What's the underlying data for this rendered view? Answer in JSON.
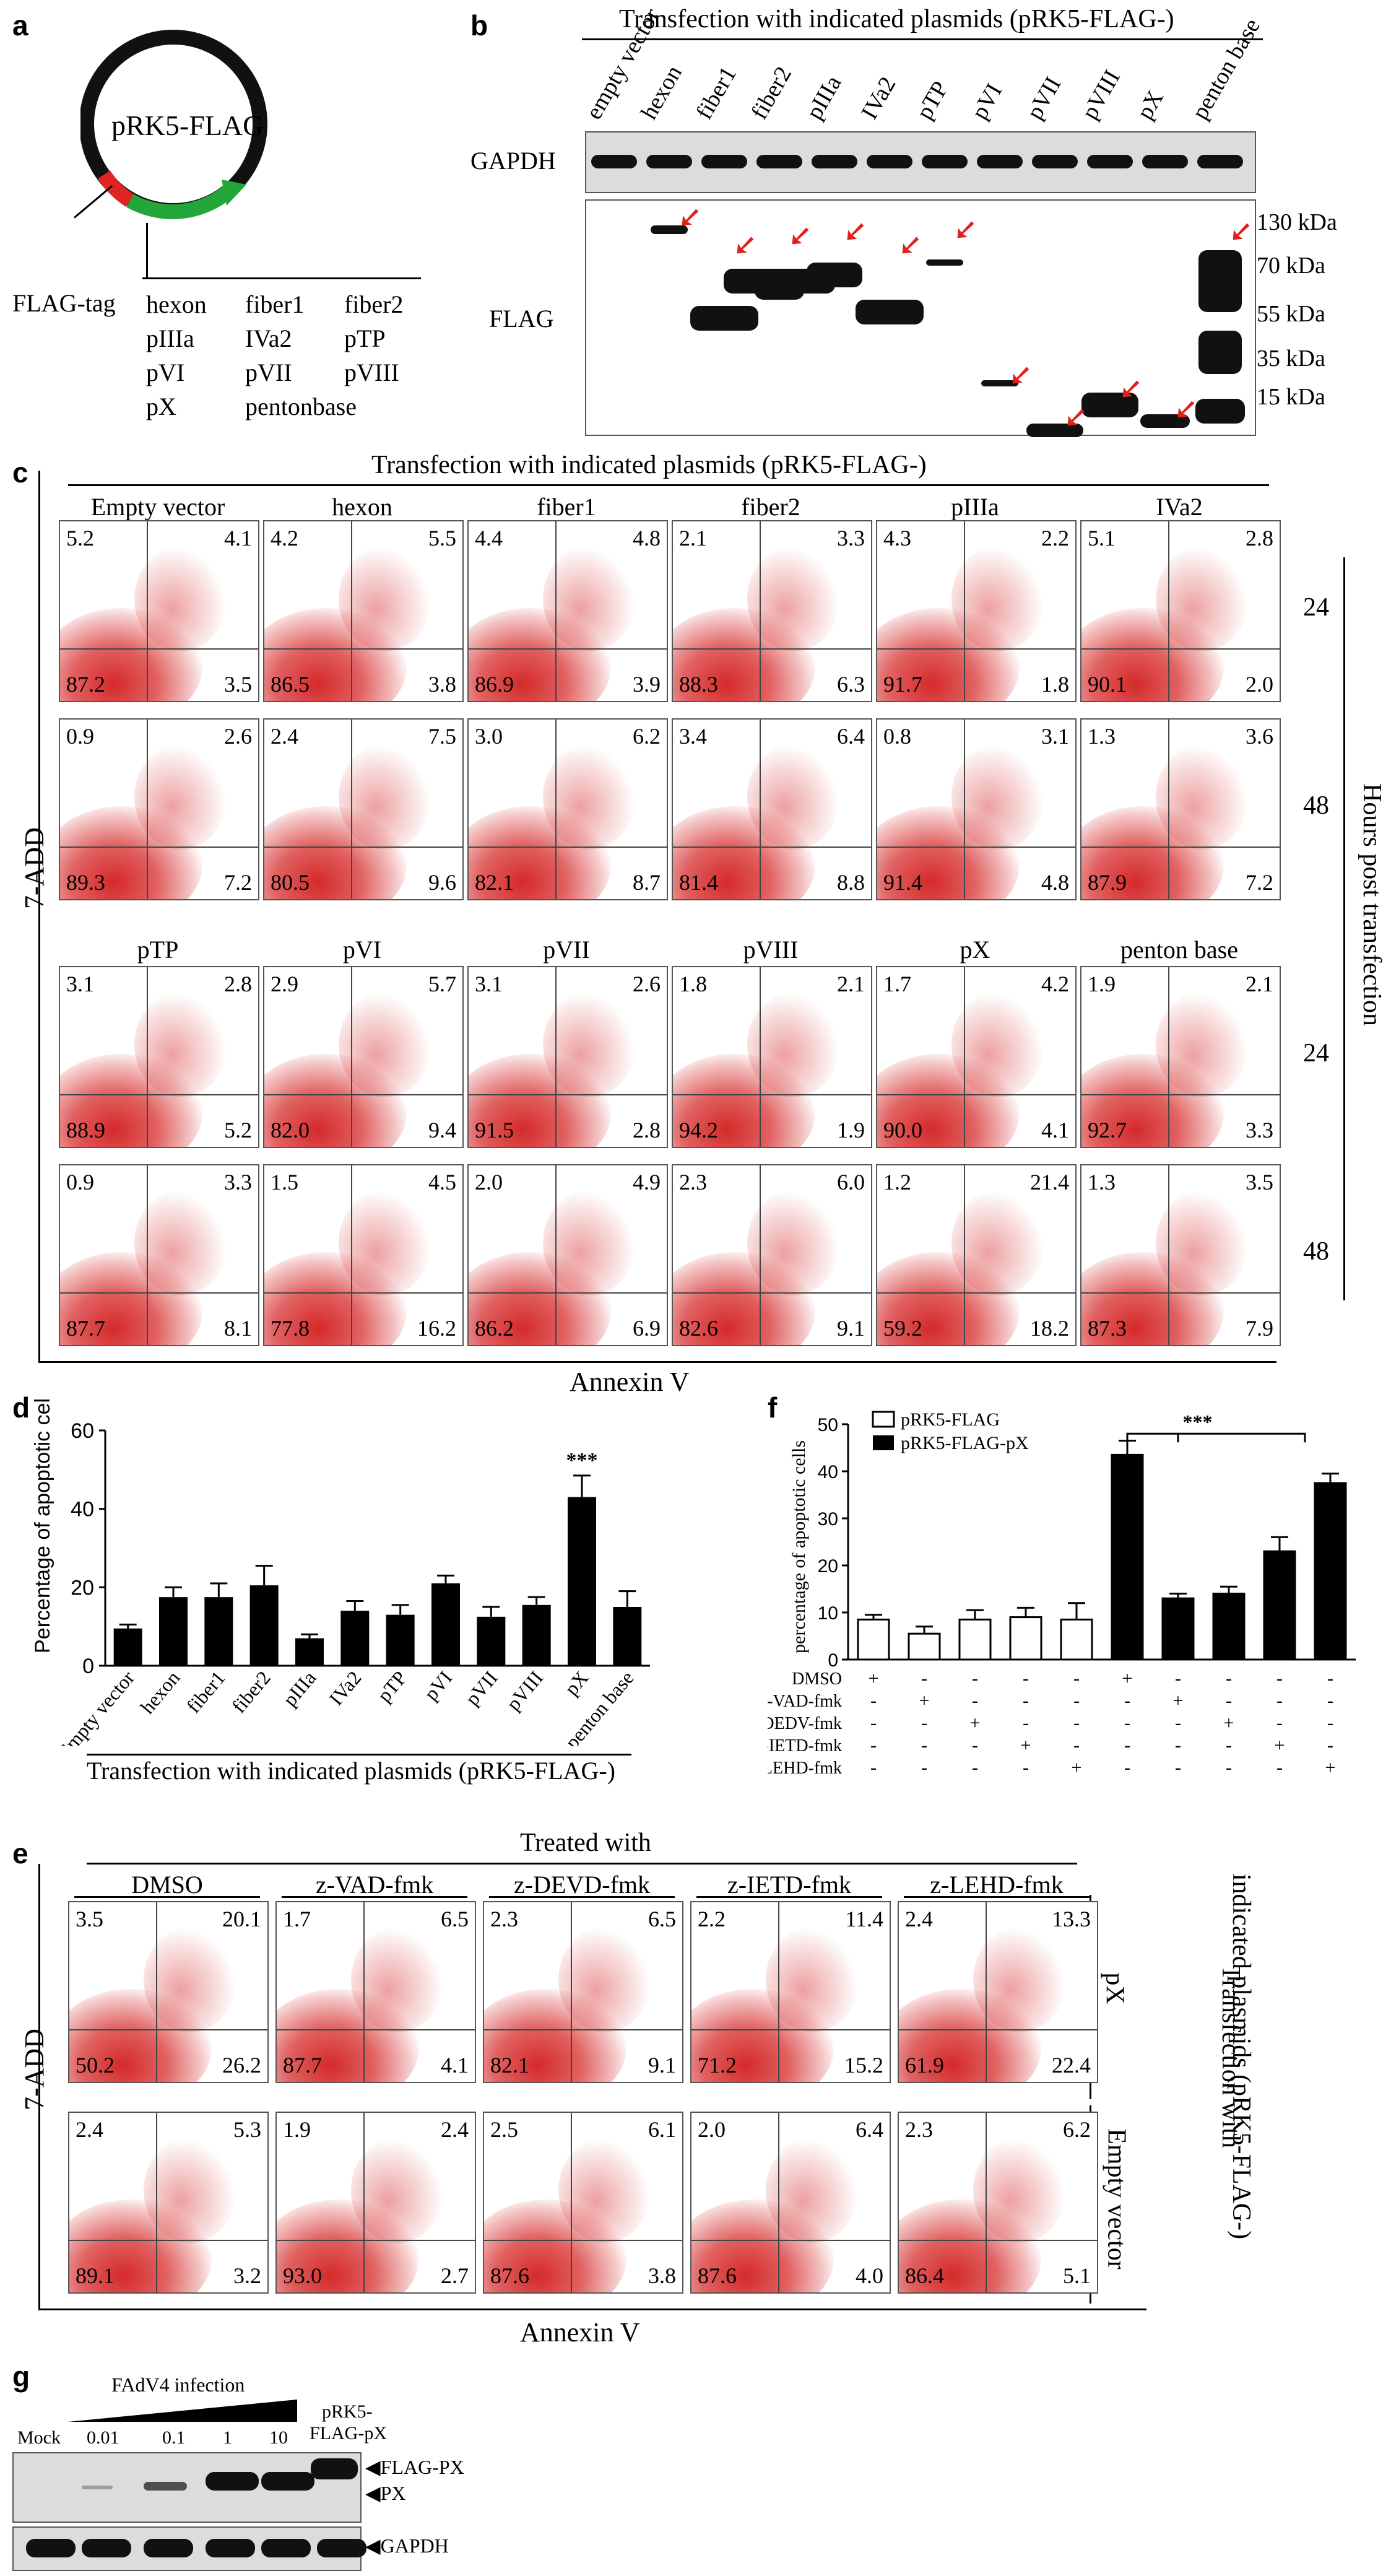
{
  "panel_labels": {
    "a": "a",
    "b": "b",
    "c": "c",
    "d": "d",
    "e": "e",
    "f": "f",
    "g": "g"
  },
  "panel_a": {
    "plasmid_name": "pRK5-FLAG",
    "tag_label": "FLAG-tag",
    "genes": [
      "hexon",
      "fiber1",
      "fiber2",
      "pIIIa",
      "IVa2",
      "pTP",
      "pVI",
      "pVII",
      "pVIII",
      "pX",
      "pentonbase"
    ]
  },
  "panel_b": {
    "title": "Transfection with indicated plasmids (pRK5-FLAG-)",
    "lanes": [
      "empty vector",
      "hexon",
      "fiber1",
      "fiber2",
      "pIIIa",
      "IVa2",
      "pTP",
      "pVI",
      "pVII",
      "pVIII",
      "pX",
      "penton base"
    ],
    "row_labels": [
      "GAPDH",
      "FLAG"
    ],
    "markers": [
      "130 kDa",
      "70 kDa",
      "55 kDa",
      "35 kDa",
      "15 kDa"
    ]
  },
  "panel_c": {
    "title": "Transfection with indicated plasmids (pRK5-FLAG-)",
    "y_axis": "7-ADD",
    "x_axis": "Annexin V",
    "side_label": "Hours post transfection",
    "row_times": [
      "24",
      "48",
      "24",
      "48"
    ],
    "group1_titles": [
      "Empty vector",
      "hexon",
      "fiber1",
      "fiber2",
      "pIIIa",
      "IVa2"
    ],
    "group2_titles": [
      "pTP",
      "pVI",
      "pVII",
      "pVIII",
      "pX",
      "penton base"
    ],
    "rows": [
      [
        [
          "5.2",
          "4.1",
          "87.2",
          "3.5"
        ],
        [
          "4.2",
          "5.5",
          "86.5",
          "3.8"
        ],
        [
          "4.4",
          "4.8",
          "86.9",
          "3.9"
        ],
        [
          "2.1",
          "3.3",
          "88.3",
          "6.3"
        ],
        [
          "4.3",
          "2.2",
          "91.7",
          "1.8"
        ],
        [
          "5.1",
          "2.8",
          "90.1",
          "2.0"
        ]
      ],
      [
        [
          "0.9",
          "2.6",
          "89.3",
          "7.2"
        ],
        [
          "2.4",
          "7.5",
          "80.5",
          "9.6"
        ],
        [
          "3.0",
          "6.2",
          "82.1",
          "8.7"
        ],
        [
          "3.4",
          "6.4",
          "81.4",
          "8.8"
        ],
        [
          "0.8",
          "3.1",
          "91.4",
          "4.8"
        ],
        [
          "1.3",
          "3.6",
          "87.9",
          "7.2"
        ]
      ],
      [
        [
          "3.1",
          "2.8",
          "88.9",
          "5.2"
        ],
        [
          "2.9",
          "5.7",
          "82.0",
          "9.4"
        ],
        [
          "3.1",
          "2.6",
          "91.5",
          "2.8"
        ],
        [
          "1.8",
          "2.1",
          "94.2",
          "1.9"
        ],
        [
          "1.7",
          "4.2",
          "90.0",
          "4.1"
        ],
        [
          "1.9",
          "2.1",
          "92.7",
          "3.3"
        ]
      ],
      [
        [
          "0.9",
          "3.3",
          "87.7",
          "8.1"
        ],
        [
          "1.5",
          "4.5",
          "77.8",
          "16.2"
        ],
        [
          "2.0",
          "4.9",
          "86.2",
          "6.9"
        ],
        [
          "2.3",
          "6.0",
          "82.6",
          "9.1"
        ],
        [
          "1.2",
          "21.4",
          "59.2",
          "18.2"
        ],
        [
          "1.3",
          "3.5",
          "87.3",
          "7.9"
        ]
      ]
    ]
  },
  "chart_data": [
    {
      "type": "bar",
      "title": "",
      "ylabel": "Percentage of apoptotic cells",
      "xlabel": "Transfection with indicated plasmids (pRK5-FLAG-)",
      "categories": [
        "Empty vector",
        "hexon",
        "fiber1",
        "fiber2",
        "pIIIa",
        "IVa2",
        "pTP",
        "pVI",
        "pVII",
        "pVIII",
        "pX",
        "penton base"
      ],
      "values": [
        9.5,
        17.5,
        17.5,
        20.5,
        7,
        14,
        13,
        21,
        12.5,
        15.5,
        43,
        15
      ],
      "errors": [
        1,
        2.5,
        3.5,
        5,
        1,
        2.5,
        2.5,
        2,
        2.5,
        2,
        5.5,
        4
      ],
      "ylim": [
        0,
        60
      ],
      "yticks": [
        "0",
        "20",
        "40",
        "60"
      ],
      "annotation": "***"
    },
    {
      "type": "bar",
      "title": "",
      "ylabel": "percentage of apoptotic cells",
      "yticks": [
        "0",
        "10",
        "20",
        "30",
        "40",
        "50"
      ],
      "ylim": [
        0,
        50
      ],
      "series": [
        {
          "name": "pRK5-FLAG",
          "values": [
            8.5,
            5.5,
            8.5,
            9,
            8.5,
            null,
            null,
            null,
            null,
            null
          ]
        },
        {
          "name": "pRK5-FLAG-pX",
          "values": [
            null,
            null,
            null,
            null,
            null,
            43.5,
            13,
            14,
            23,
            37.5
          ]
        }
      ],
      "errors": [
        1,
        1.5,
        2,
        2,
        3.5,
        3,
        1,
        1.5,
        3,
        2
      ],
      "annotation": "***",
      "treatments": [
        {
          "name": "DMSO",
          "marks": [
            "+",
            "-",
            "-",
            "-",
            "-",
            "+",
            "-",
            "-",
            "-",
            "-"
          ]
        },
        {
          "name": "z-VAD-fmk",
          "marks": [
            "-",
            "+",
            "-",
            "-",
            "-",
            "-",
            "+",
            "-",
            "-",
            "-"
          ]
        },
        {
          "name": "z-DEDV-fmk",
          "marks": [
            "-",
            "-",
            "+",
            "-",
            "-",
            "-",
            "-",
            "+",
            "-",
            "-"
          ]
        },
        {
          "name": "z-IETD-fmk",
          "marks": [
            "-",
            "-",
            "-",
            "+",
            "-",
            "-",
            "-",
            "-",
            "+",
            "-"
          ]
        },
        {
          "name": "z-LEHD-fmk",
          "marks": [
            "-",
            "-",
            "-",
            "-",
            "+",
            "-",
            "-",
            "-",
            "-",
            "+"
          ]
        }
      ]
    }
  ],
  "panel_e": {
    "title": "Treated with",
    "y_axis": "7-ADD",
    "x_axis": "Annexin V",
    "col_titles": [
      "DMSO",
      "z-VAD-fmk",
      "z-DEVD-fmk",
      "z-IETD-fmk",
      "z-LEHD-fmk"
    ],
    "row_labels": [
      "pX",
      "Empty vector"
    ],
    "side_label_1": "Transfection with",
    "side_label_2": "indicated plasmids (pRK5-FLAG-)",
    "rows": [
      [
        [
          "3.5",
          "20.1",
          "50.2",
          "26.2"
        ],
        [
          "1.7",
          "6.5",
          "87.7",
          "4.1"
        ],
        [
          "2.3",
          "6.5",
          "82.1",
          "9.1"
        ],
        [
          "2.2",
          "11.4",
          "71.2",
          "15.2"
        ],
        [
          "2.4",
          "13.3",
          "61.9",
          "22.4"
        ]
      ],
      [
        [
          "2.4",
          "5.3",
          "89.1",
          "3.2"
        ],
        [
          "1.9",
          "2.4",
          "93.0",
          "2.7"
        ],
        [
          "2.5",
          "6.1",
          "87.6",
          "3.8"
        ],
        [
          "2.0",
          "6.4",
          "87.6",
          "4.0"
        ],
        [
          "2.3",
          "6.2",
          "86.4",
          "5.1"
        ]
      ]
    ]
  },
  "panel_g": {
    "infection_label": "FAdV4 infection",
    "lanes": [
      "Mock",
      "0.01",
      "0.1",
      "1",
      "10"
    ],
    "plasmid_lane_1": "pRK5-",
    "plasmid_lane_2": "FLAG-pX",
    "band_labels": [
      "FLAG-PX",
      "PX",
      "GAPDH"
    ]
  }
}
